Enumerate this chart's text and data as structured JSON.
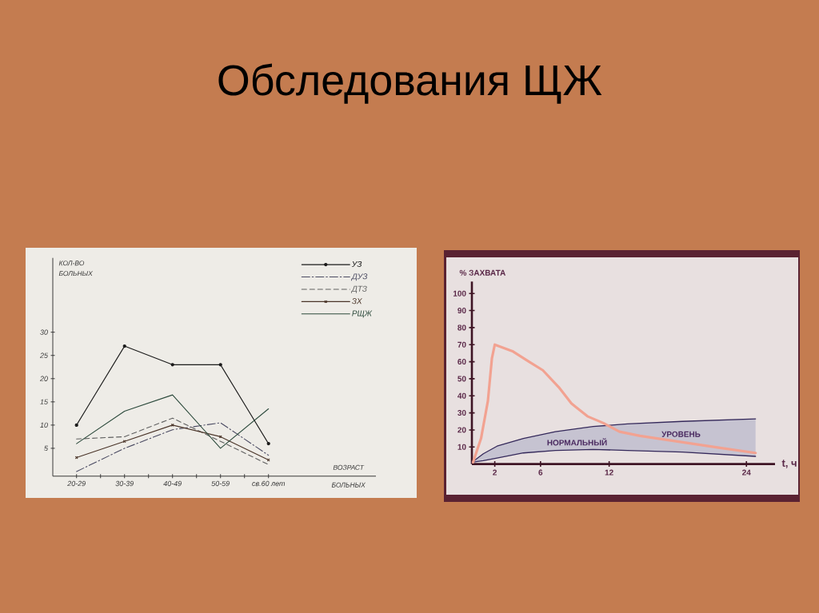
{
  "chart_data": [
    {
      "type": "line",
      "title": "Обследования ЩЖ",
      "xlabel": "ВОЗРАСТ БОЛЬНЫХ",
      "ylabel": "КОЛ-ВО БОЛЬНЫХ",
      "categories": [
        "20-29",
        "30-39",
        "40-49",
        "50-59",
        "св.60 лет"
      ],
      "ylim": [
        -1,
        46
      ],
      "yticks": [
        5,
        10,
        15,
        20,
        25,
        30
      ],
      "legend": "top right",
      "series": [
        {
          "name": "УЗ",
          "color": "#1a1a1a",
          "marker": "circle",
          "line_style": "solid",
          "values": [
            10,
            27,
            23,
            23,
            6
          ]
        },
        {
          "name": "ДУЗ",
          "color": "#4a4a62",
          "line_style": "dashdot",
          "values": [
            0,
            5,
            9,
            10.5,
            3.5
          ]
        },
        {
          "name": "ДТЗ",
          "color": "#606060",
          "line_style": "dashed",
          "values": [
            7,
            7.5,
            11.5,
            6.5,
            1.5
          ]
        },
        {
          "name": "ЗХ",
          "color": "#4a3428",
          "marker": "cross",
          "line_style": "solid",
          "values": [
            3,
            6.5,
            10,
            7.5,
            2.5
          ]
        },
        {
          "name": "РЩЖ",
          "color": "#2c4a3c",
          "line_style": "solid",
          "values": [
            6,
            13,
            16.5,
            5,
            13.5
          ]
        }
      ]
    },
    {
      "type": "line",
      "xlabel": "t, ч",
      "ylabel": "% ЗАХВАТА",
      "xlim": [
        0,
        26.5
      ],
      "ylim": [
        0,
        107
      ],
      "xticks": [
        2,
        6,
        12,
        24
      ],
      "yticks": [
        10,
        20,
        30,
        40,
        50,
        60,
        70,
        80,
        90,
        100
      ],
      "annotations": [
        "НОРМАЛЬНЫЙ",
        "УРОВЕНЬ"
      ],
      "series": [
        {
          "type": "line",
          "color": "#34285a",
          "x": [
            0,
            1,
            2.2,
            4.5,
            7.3,
            10.6,
            13.6,
            18.4,
            24.8
          ],
          "values": [
            1,
            6,
            10.5,
            15,
            19,
            22,
            23.5,
            25,
            26.5
          ],
          "upper": [
            1,
            6,
            10.5,
            15,
            19,
            22,
            23.5,
            25,
            26.5
          ],
          "lower": [
            1,
            2,
            3.5,
            6.5,
            8,
            8.5,
            8,
            7,
            4.5
          ]
        },
        {
          "type": "line",
          "color": "#34285a",
          "x": [
            0,
            1,
            2.2,
            4.5,
            7.3,
            10.6,
            13.6,
            18.4,
            24.8
          ],
          "values": [
            1,
            2,
            3.5,
            6.5,
            8,
            8.5,
            8,
            7,
            4.5
          ]
        },
        {
          "type": "line",
          "color": "#f2a291",
          "x": [
            0.1,
            0.8,
            1.4,
            1.75,
            2,
            3.6,
            5,
            6.2,
            7.6,
            8.7,
            10.1,
            11.5,
            12.9,
            14.7,
            18.2,
            21.7,
            24.8
          ],
          "values": [
            1,
            15,
            37,
            62,
            70,
            66,
            60,
            55,
            45,
            35.5,
            28,
            24,
            19,
            16.5,
            13,
            9.5,
            6.5
          ]
        }
      ]
    }
  ]
}
